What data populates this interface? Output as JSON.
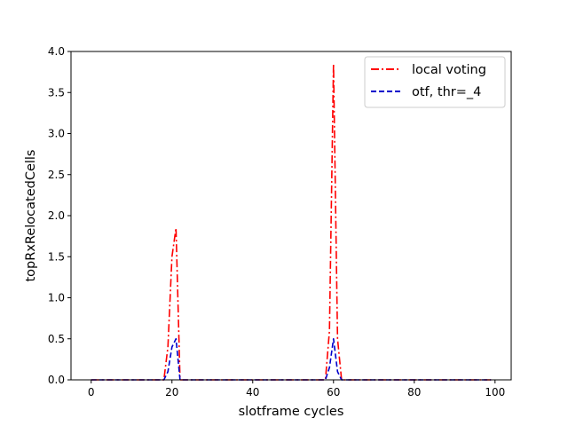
{
  "chart_data": {
    "type": "line",
    "title": "",
    "xlabel": "slotframe cycles",
    "ylabel": "topRxRelocatedCells",
    "xlim": [
      -5,
      104
    ],
    "ylim": [
      0,
      4.0
    ],
    "xticks": [
      0,
      20,
      40,
      60,
      80,
      100
    ],
    "yticks": [
      0.0,
      0.5,
      1.0,
      1.5,
      2.0,
      2.5,
      3.0,
      3.5,
      4.0
    ],
    "grid": false,
    "legend_position": "top-right",
    "series": [
      {
        "name": "local voting",
        "color": "#ff0000",
        "linestyle": "dash-dot",
        "x": [
          0,
          18,
          19,
          20,
          21,
          22,
          23,
          58,
          59,
          60,
          61,
          62,
          99
        ],
        "y": [
          0,
          0,
          0.4,
          1.5,
          1.85,
          0,
          0,
          0,
          0.6,
          3.85,
          0.5,
          0,
          0
        ]
      },
      {
        "name": "otf, thr=_4",
        "color": "#0000cc",
        "linestyle": "dashed",
        "x": [
          0,
          18,
          19,
          20,
          21,
          22,
          23,
          58,
          59,
          60,
          61,
          62,
          99
        ],
        "y": [
          0,
          0,
          0.1,
          0.4,
          0.5,
          0,
          0,
          0,
          0.15,
          0.5,
          0.1,
          0,
          0
        ]
      }
    ]
  }
}
